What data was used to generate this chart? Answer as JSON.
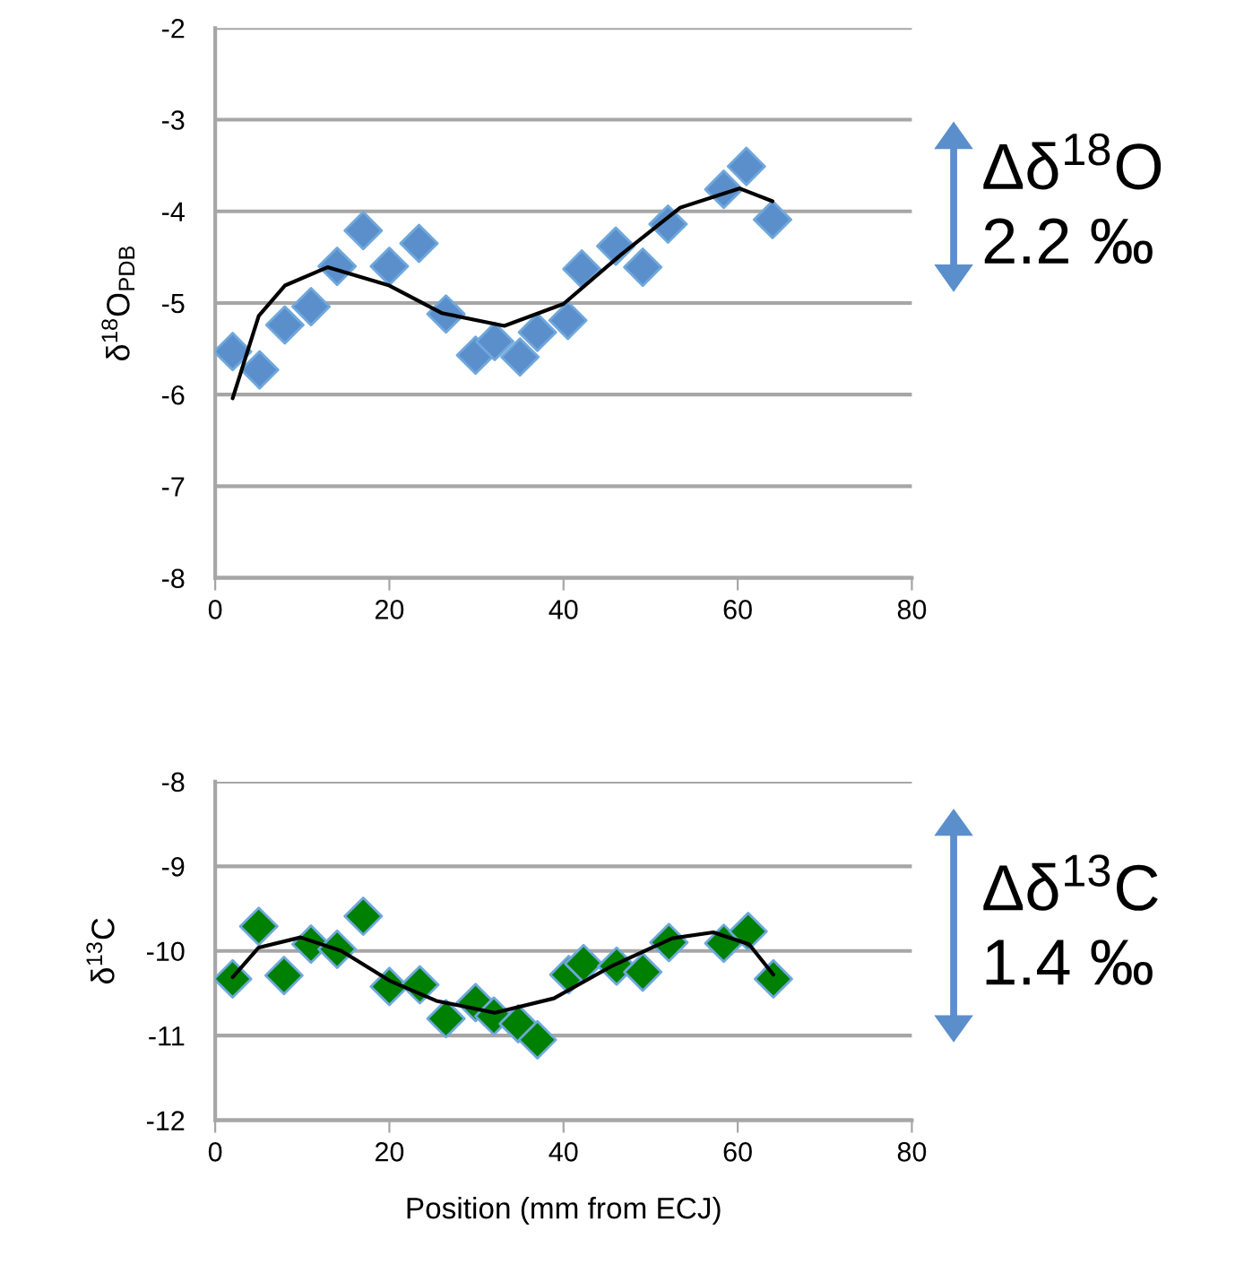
{
  "chart_data": [
    {
      "type": "scatter",
      "ylabel": "δ$^{18}$O$_{PDB}$",
      "xlim": [
        0,
        80
      ],
      "xticks": [
        0,
        20,
        40,
        60,
        80
      ],
      "ylim": [
        -8,
        -2
      ],
      "yticks": [
        -8,
        -7,
        -6,
        -5,
        -4,
        -3,
        -2
      ],
      "grid": "y",
      "legend": false,
      "annotations": [
        "Δδ$^{18}$O\n2.2 ‰"
      ],
      "series": [
        {
          "marker": "diamond",
          "color": "#5b8fcc",
          "x": [
            2.0,
            5.1,
            8.0,
            11.0,
            14.0,
            17.0,
            20.0,
            23.4,
            26.5,
            29.9,
            32.1,
            35.0,
            37.0,
            40.5,
            42.1,
            46.0,
            49.1,
            52.0,
            58.4,
            61.0,
            64.0
          ],
          "values": [
            -5.53,
            -5.73,
            -5.24,
            -5.04,
            -4.6,
            -4.21,
            -4.6,
            -4.35,
            -5.12,
            -5.57,
            -5.42,
            -5.59,
            -5.32,
            -5.19,
            -4.63,
            -4.38,
            -4.61,
            -4.14,
            -3.76,
            -3.51,
            -4.09
          ]
        },
        {
          "type": "line",
          "color": "#000000",
          "x": [
            2,
            5,
            8,
            12.9,
            20,
            26,
            33.2,
            40,
            46.5,
            53.4,
            60.2,
            64
          ],
          "values": [
            -6.04,
            -5.14,
            -4.81,
            -4.61,
            -4.81,
            -5.11,
            -5.25,
            -5.01,
            -4.48,
            -3.96,
            -3.75,
            -3.89
          ]
        }
      ]
    },
    {
      "type": "scatter",
      "ylabel": "δ$^{13}$C",
      "xlabel": "Position (mm from ECJ)",
      "xlim": [
        0,
        80
      ],
      "xticks": [
        0,
        20,
        40,
        60,
        80
      ],
      "ylim": [
        -12,
        -8
      ],
      "yticks": [
        -12,
        -11,
        -10,
        -9,
        -8
      ],
      "grid": "y",
      "legend": false,
      "annotations": [
        "Δδ$^{13}$C\n1.4 ‰"
      ],
      "series": [
        {
          "marker": "diamond",
          "color": "#008000",
          "x": [
            2.0,
            5.0,
            7.9,
            11.0,
            14.0,
            17.0,
            20.0,
            23.5,
            26.5,
            29.9,
            32.0,
            34.8,
            37.0,
            40.6,
            42.3,
            46.1,
            49.1,
            52.1,
            58.4,
            61.2,
            64.1
          ],
          "values": [
            -10.33,
            -9.71,
            -10.29,
            -9.92,
            -9.98,
            -9.59,
            -10.42,
            -10.4,
            -10.8,
            -10.61,
            -10.77,
            -10.86,
            -11.05,
            -10.28,
            -10.15,
            -10.18,
            -10.25,
            -9.9,
            -9.91,
            -9.77,
            -10.33
          ]
        },
        {
          "type": "line",
          "color": "#000000",
          "x": [
            2,
            5,
            9.8,
            14.5,
            20,
            25.4,
            32.1,
            38.9,
            45.7,
            52.5,
            57.2,
            61.3,
            64.1
          ],
          "values": [
            -10.31,
            -9.96,
            -9.84,
            -10.0,
            -10.35,
            -10.59,
            -10.73,
            -10.56,
            -10.17,
            -9.85,
            -9.78,
            -9.92,
            -10.28
          ]
        }
      ]
    }
  ]
}
